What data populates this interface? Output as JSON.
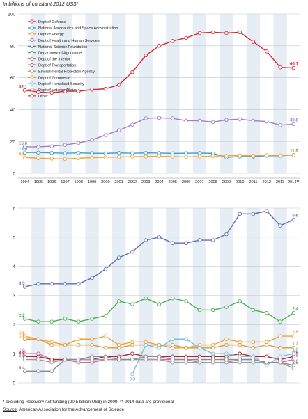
{
  "subtitle": "In billions of constant 2012 US$*",
  "footnote": "* excluding Recovery Act funding (20.5 billion US$) in 2009; ** 2014 data are provisional",
  "source_label": "Source",
  "source_text": ": American Association for the Advancement of Science",
  "chart_data": [
    {
      "type": "line",
      "title": "",
      "x_labels": [
        "1994",
        "1995",
        "1996",
        "1997",
        "1998",
        "1999",
        "2000",
        "2001",
        "2002",
        "2003",
        "2004",
        "2005",
        "2006",
        "2007",
        "2008",
        "2009",
        "2010",
        "2011",
        "2012",
        "2013",
        "2014**"
      ],
      "ylim": [
        0,
        100
      ],
      "y_ticks": [
        0,
        20,
        40,
        60,
        80,
        100
      ],
      "grid": true,
      "legend": [
        {
          "name": "Dept of Defense",
          "color": "#d7262e"
        },
        {
          "name": "National Aeronautics and Space Administration",
          "color": "#3aa0cf"
        },
        {
          "name": "Dept of Energy",
          "color": "#f0a23a"
        },
        {
          "name": "Dept of Health and Human Services",
          "color": "#7a4fa8"
        },
        {
          "name": "National Science Foundation",
          "color": "#5d6fb0"
        },
        {
          "name": "Department of Agriculture",
          "color": "#47b04b"
        },
        {
          "name": "Dept of the Interior",
          "color": "#c96ab0"
        },
        {
          "name": "Dept of Transportation",
          "color": "#b1212f"
        },
        {
          "name": "Environmental Protection Agency",
          "color": "#9aa36b"
        },
        {
          "name": "Dept of Commerce",
          "color": "#d69a3a"
        },
        {
          "name": "Dept of Homeland Security",
          "color": "#7bc0d8"
        },
        {
          "name": "Dept of Veteran Affairs",
          "color": "#9c9c9c"
        },
        {
          "name": "Other",
          "color": "#c8573a"
        }
      ],
      "series": [
        {
          "key": "defense",
          "color": "#d7262e",
          "values": [
            52.1,
            51,
            50.5,
            51.5,
            51.5,
            52.5,
            53,
            55.5,
            63.5,
            74,
            80,
            83,
            85,
            88,
            88.5,
            88,
            88.5,
            82.5,
            76.5,
            66.5,
            66.1
          ],
          "label_first": "52.1",
          "label_last": "66.1"
        },
        {
          "key": "hhs",
          "color": "#9d7fc2",
          "values": [
            16.6,
            16.6,
            17,
            17.8,
            19,
            21,
            24,
            27,
            30.5,
            34.5,
            34.8,
            34.5,
            33,
            33,
            32.2,
            33.5,
            34,
            33,
            32.5,
            30.2,
            30.8
          ],
          "label_first": "16.6",
          "label_last": "30.8"
        },
        {
          "key": "nasa",
          "color": "#3aa0cf",
          "values": [
            13.0,
            13,
            12.8,
            12.6,
            12.8,
            12.6,
            12.5,
            12.8,
            12.6,
            12.8,
            12.7,
            12.5,
            12.6,
            12.7,
            12.5,
            10,
            10.5,
            10.5,
            11,
            11,
            11.5
          ],
          "label_first": "13.0",
          "label_last": "11.5"
        },
        {
          "key": "energy",
          "color": "#f0a23a",
          "values": [
            9.9,
            9.5,
            9.2,
            9,
            9.5,
            9.8,
            10,
            10.2,
            10.5,
            10.5,
            10.8,
            10.5,
            10.3,
            10.5,
            10.8,
            11,
            11.2,
            11,
            11.3,
            11.2,
            11.4
          ],
          "label_first": "9.9",
          "label_last": "11.4"
        }
      ]
    },
    {
      "type": "line",
      "title": "",
      "ylim": [
        0,
        6
      ],
      "y_ticks": [
        0,
        1,
        2,
        3,
        4,
        5,
        6
      ],
      "grid": true,
      "series": [
        {
          "key": "nsf",
          "color": "#5d6fb0",
          "values": [
            3.3,
            3.4,
            3.4,
            3.4,
            3.4,
            3.6,
            3.9,
            4.3,
            4.5,
            4.9,
            5.0,
            4.8,
            4.8,
            4.9,
            4.9,
            5.1,
            5.8,
            5.8,
            5.9,
            5.4,
            5.6
          ],
          "label_first": "3.3",
          "label_last": "5.6"
        },
        {
          "key": "agriculture",
          "color": "#47b04b",
          "values": [
            2.2,
            2.1,
            2.1,
            2.2,
            2.1,
            2.2,
            2.3,
            2.8,
            2.7,
            2.9,
            2.7,
            2.9,
            2.8,
            2.5,
            2.5,
            2.6,
            2.8,
            2.5,
            2.4,
            2.1,
            2.4
          ],
          "label_first": "2.2",
          "label_last": "2.4"
        },
        {
          "key": "commerce",
          "color": "#f0a23a",
          "values": [
            1.6,
            1.5,
            1.4,
            1.3,
            1.5,
            1.5,
            1.6,
            1.3,
            1.4,
            1.4,
            1.3,
            1.2,
            1.2,
            1.3,
            1.3,
            1.5,
            1.4,
            1.4,
            1.4,
            1.6,
            1.6
          ],
          "label_first": "1.6",
          "label_last": "1.6"
        },
        {
          "key": "interior",
          "color": "#d69a3a",
          "values": [
            1.5,
            1.5,
            1.3,
            1.3,
            1.3,
            1.3,
            1.2,
            1.2,
            1.3,
            1.3,
            1.3,
            1.3,
            1.2,
            1.2,
            1.2,
            1.3,
            1.3,
            1.2,
            1.3,
            1.2,
            1.2
          ],
          "label_first": "1.5",
          "label_last": "1.2"
        },
        {
          "key": "epa",
          "color": "#c96ab0",
          "values": [
            1.0,
            1.0,
            0.8,
            0.8,
            0.7,
            0.7,
            0.8,
            0.8,
            0.8,
            0.8,
            0.8,
            0.8,
            0.8,
            0.7,
            0.7,
            0.7,
            0.8,
            0.8,
            0.7,
            0.7,
            0.8
          ],
          "label_first": "1.0",
          "label_last": "0.8"
        },
        {
          "key": "transportation",
          "color": "#b1212f",
          "values": [
            0.9,
            0.9,
            0.8,
            0.8,
            0.8,
            0.8,
            0.9,
            0.9,
            1.0,
            0.9,
            0.9,
            0.9,
            0.9,
            0.9,
            0.9,
            0.9,
            1.0,
            0.9,
            0.9,
            0.8,
            0.9
          ],
          "label_first": "0.9",
          "label_last": "0.9"
        },
        {
          "key": "homeland",
          "color": "#7bc0d8",
          "values": [
            null,
            null,
            null,
            null,
            null,
            null,
            null,
            null,
            0.3,
            1.3,
            1.2,
            1.5,
            1.5,
            1.2,
            1.0,
            1.0,
            0.9,
            0.9,
            0.6,
            0.9,
            1.0
          ],
          "label_first": "0.3",
          "label_last": "1.0"
        },
        {
          "key": "veterans",
          "color": "#9c9c9c",
          "values": [
            0.8,
            0.8,
            0.7,
            0.8,
            0.8,
            0.8,
            0.8,
            0.8,
            0.8,
            0.8,
            0.8,
            0.7,
            0.7,
            0.7,
            0.7,
            0.7,
            0.7,
            0.7,
            0.7,
            0.7,
            0.5
          ],
          "label_first": "0.8",
          "label_last": "0.5"
        },
        {
          "key": "other",
          "color": "#8a8a8a",
          "values": [
            0.4,
            0.4,
            0.4,
            0.8,
            0.8,
            0.9,
            0.9,
            0.8,
            0.8,
            0.9,
            0.9,
            0.8,
            0.8,
            0.8,
            0.8,
            0.8,
            0.8,
            0.8,
            0.7,
            0.7,
            0.6
          ],
          "label_first": "0.4",
          "label_last": "0.6"
        }
      ]
    }
  ]
}
